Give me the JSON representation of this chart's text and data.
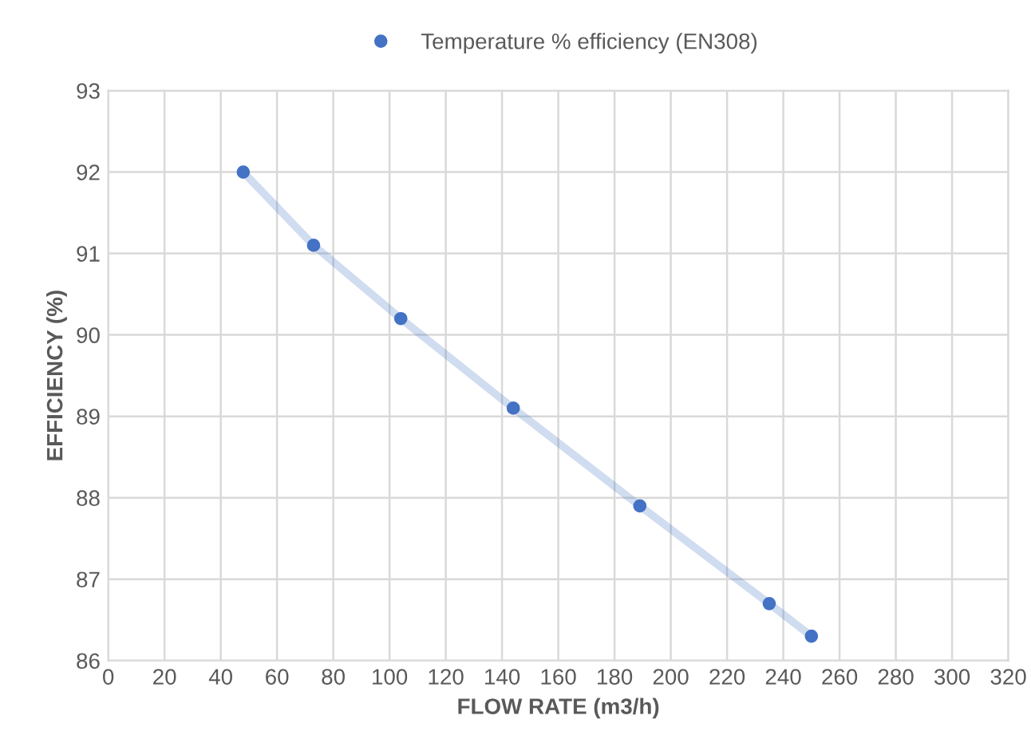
{
  "chart_data": {
    "type": "line",
    "xlabel": "FLOW RATE (m3/h)",
    "ylabel": "EFFICIENCY (%)",
    "x": [
      48,
      73,
      104,
      144,
      189,
      235,
      250
    ],
    "series": [
      {
        "name": "Temperature % efficiency (EN308)",
        "color": "#4472c4",
        "values": [
          92.0,
          91.1,
          90.2,
          89.1,
          87.9,
          86.7,
          86.3
        ]
      }
    ],
    "xlim": [
      0,
      320
    ],
    "xticks": [
      0,
      20,
      40,
      60,
      80,
      100,
      120,
      140,
      160,
      180,
      200,
      220,
      240,
      260,
      280,
      300,
      320
    ],
    "ylim": [
      86,
      93
    ],
    "yticks": [
      86,
      87,
      88,
      89,
      90,
      91,
      92,
      93
    ],
    "grid": true,
    "legend": "top",
    "marker": "circle",
    "line_style": "solid"
  }
}
